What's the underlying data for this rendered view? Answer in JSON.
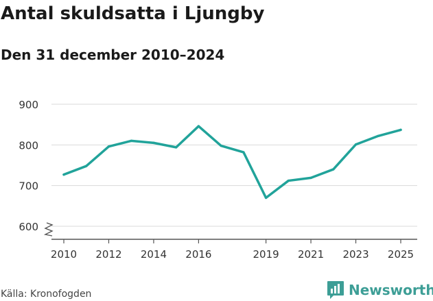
{
  "header": {
    "title": "Antal skuldsatta i Ljungby",
    "subtitle": "Den 31 december 2010–2024"
  },
  "footer": {
    "source": "Källa: Kronofogden",
    "brand": "Newsworthy",
    "brand_icon": "bar-chart-logo-icon",
    "brand_color": "#3d9e96"
  },
  "colors": {
    "line": "#21a39a",
    "grid": "#d9d9d9",
    "axis": "#555555",
    "tick_text": "#333333"
  },
  "chart_data": {
    "type": "line",
    "x": [
      2010,
      2011,
      2012,
      2013,
      2014,
      2015,
      2016,
      2017,
      2018,
      2019,
      2020,
      2021,
      2022,
      2023,
      2024,
      2025
    ],
    "series": [
      {
        "values": [
          727,
          748,
          796,
          810,
          805,
          794,
          846,
          798,
          782,
          670,
          712,
          719,
          740,
          801,
          822,
          837
        ]
      }
    ],
    "x_ticks": [
      2010,
      2012,
      2014,
      2016,
      2019,
      2021,
      2023,
      2025
    ],
    "y_ticks": [
      600,
      700,
      800,
      900
    ],
    "ylim": [
      600,
      900
    ],
    "xlim": [
      2010,
      2025
    ],
    "grid": true,
    "y_axis_break": true,
    "xlabel": "",
    "ylabel": ""
  }
}
